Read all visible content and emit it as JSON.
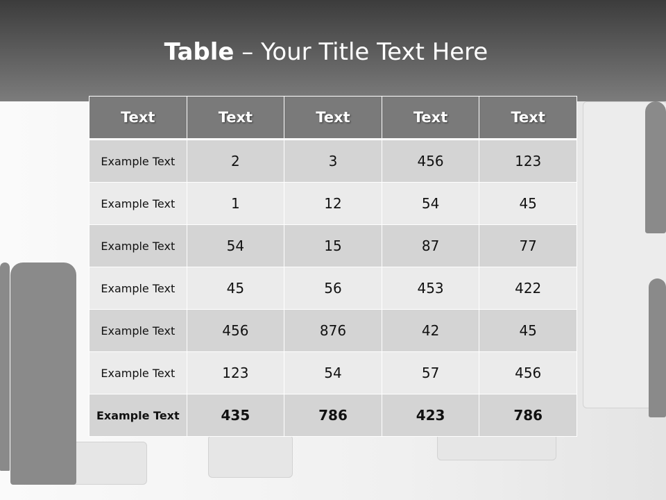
{
  "slide": {
    "title_bold": "Table",
    "title_rest": " – Your Title Text Here"
  },
  "table": {
    "headers": [
      "Text",
      "Text",
      "Text",
      "Text",
      "Text"
    ],
    "rows": [
      [
        "Example Text",
        "2",
        "3",
        "456",
        "123"
      ],
      [
        "Example Text",
        "1",
        "12",
        "54",
        "45"
      ],
      [
        "Example Text",
        "54",
        "15",
        "87",
        "77"
      ],
      [
        "Example Text",
        "45",
        "56",
        "453",
        "422"
      ],
      [
        "Example Text",
        "456",
        "876",
        "42",
        "45"
      ],
      [
        "Example Text",
        "123",
        "54",
        "57",
        "456"
      ],
      [
        "Example Text",
        "435",
        "786",
        "423",
        "786"
      ]
    ]
  }
}
